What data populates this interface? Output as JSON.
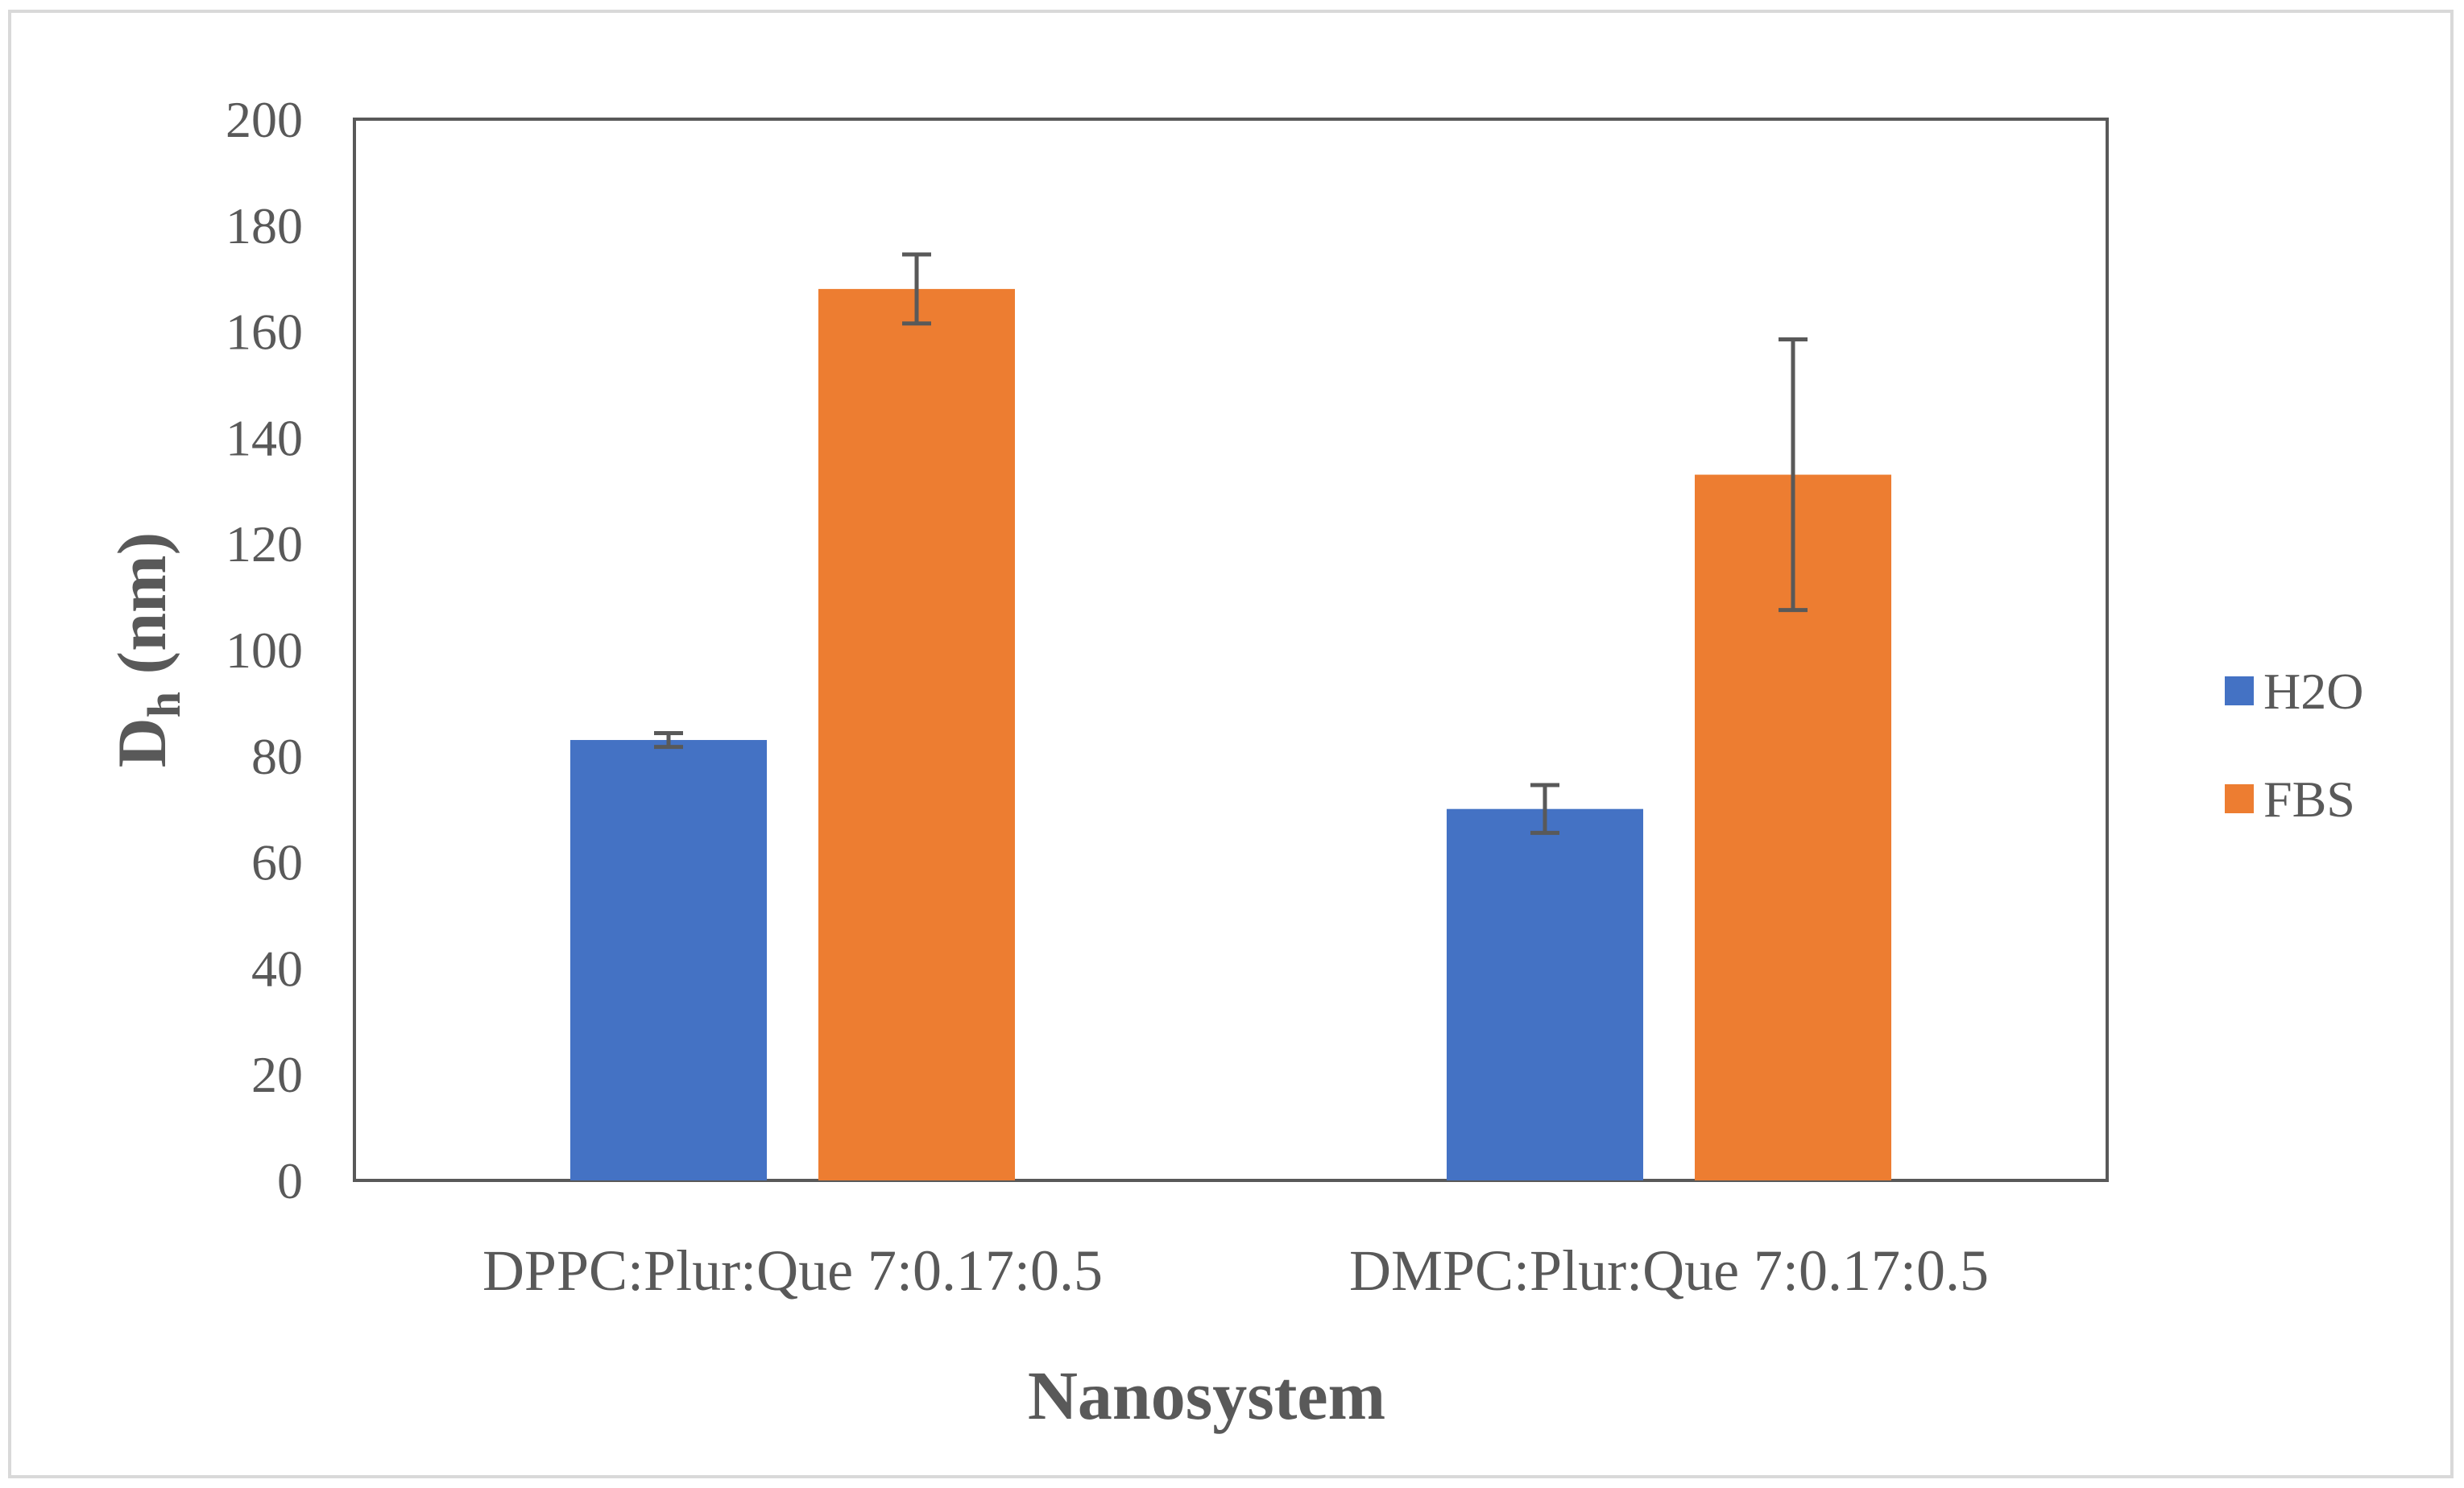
{
  "chart_data": {
    "type": "bar",
    "title": "",
    "xlabel": "Nanosystem",
    "ylabel_main": "D",
    "ylabel_sub": "h",
    "ylabel_suffix": " (nm)",
    "ylim": [
      0,
      200
    ],
    "ytick_step": 20,
    "categories": [
      "DPPC:Plur:Que 7:0.17:0.5",
      "DMPC:Plur:Que 7:0.17:0.5"
    ],
    "series": [
      {
        "name": "H2O",
        "color": "#4472C4",
        "values": [
          83,
          70
        ],
        "errors": [
          1.3,
          4.5
        ]
      },
      {
        "name": "FBS",
        "color": "#ED7D31",
        "values": [
          168,
          133
        ],
        "errors": [
          6.5,
          25.5
        ]
      }
    ],
    "grid": false,
    "legend_position": "right"
  }
}
